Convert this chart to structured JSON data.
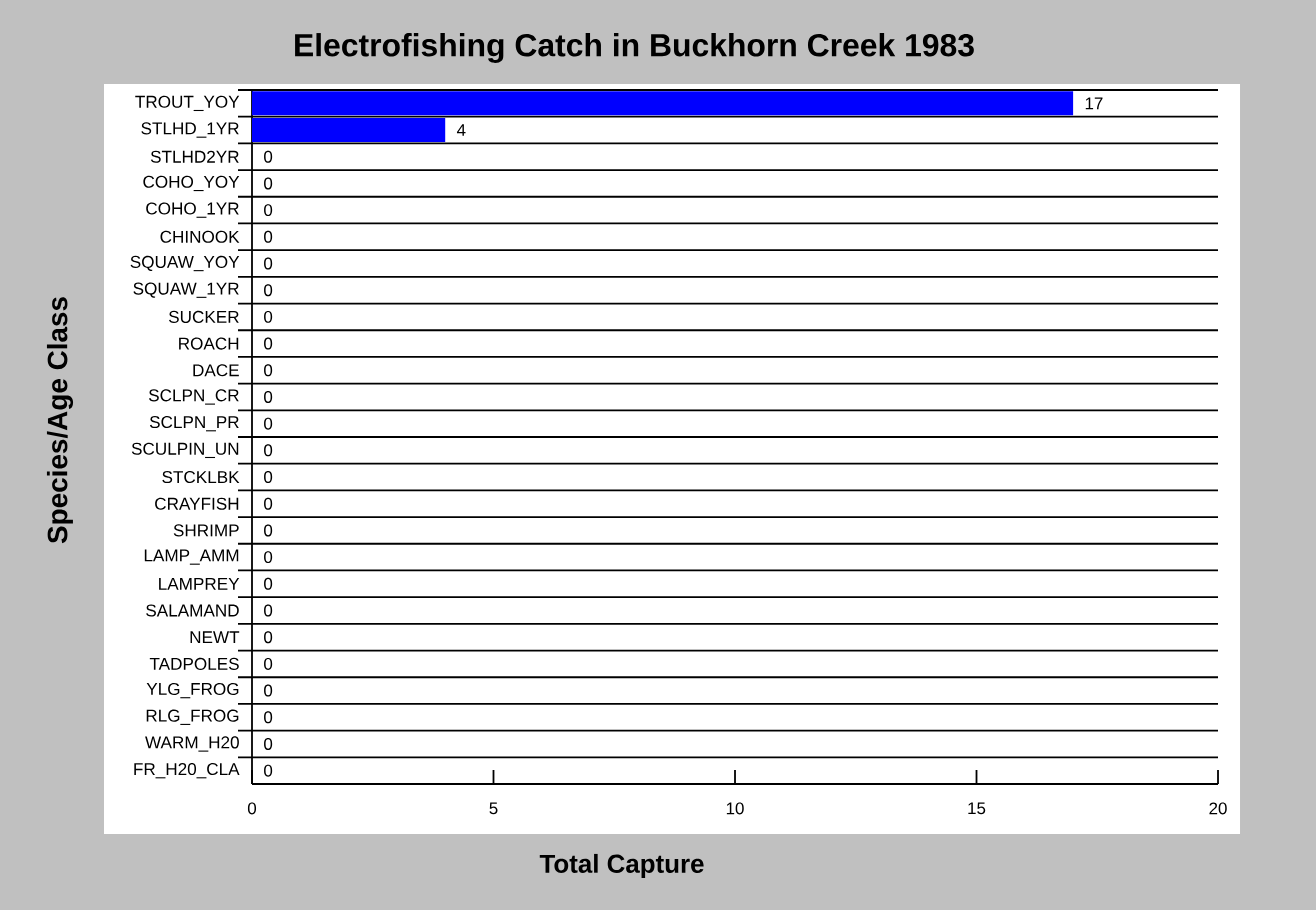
{
  "chart_data": {
    "type": "bar",
    "orientation": "horizontal",
    "title": "Electrofishing Catch in Buckhorn Creek 1983",
    "xlabel": "Total Capture",
    "ylabel": "Species/Age Class",
    "categories": [
      "TROUT_YOY",
      "STLHD_1YR",
      "STLHD2YR",
      "COHO_YOY",
      "COHO_1YR",
      "CHINOOK",
      "SQUAW_YOY",
      "SQUAW_1YR",
      "SUCKER",
      "ROACH",
      "DACE",
      "SCLPN_CR",
      "SCLPN_PR",
      "SCULPIN_UN",
      "STCKLBK",
      "CRAYFISH",
      "SHRIMP",
      "LAMP_AMM",
      "LAMPREY",
      "SALAMAND",
      "NEWT",
      "TADPOLES",
      "YLG_FROG",
      "RLG_FROG",
      "WARM_H20",
      "FR_H20_CLA"
    ],
    "values": [
      17,
      4,
      0,
      0,
      0,
      0,
      0,
      0,
      0,
      0,
      0,
      0,
      0,
      0,
      0,
      0,
      0,
      0,
      0,
      0,
      0,
      0,
      0,
      0,
      0,
      0
    ],
    "color": "#0000ff",
    "xlim": [
      0,
      20
    ],
    "xticks": [
      0,
      5,
      10,
      15,
      20
    ],
    "grid": "y",
    "data_labels": true
  }
}
